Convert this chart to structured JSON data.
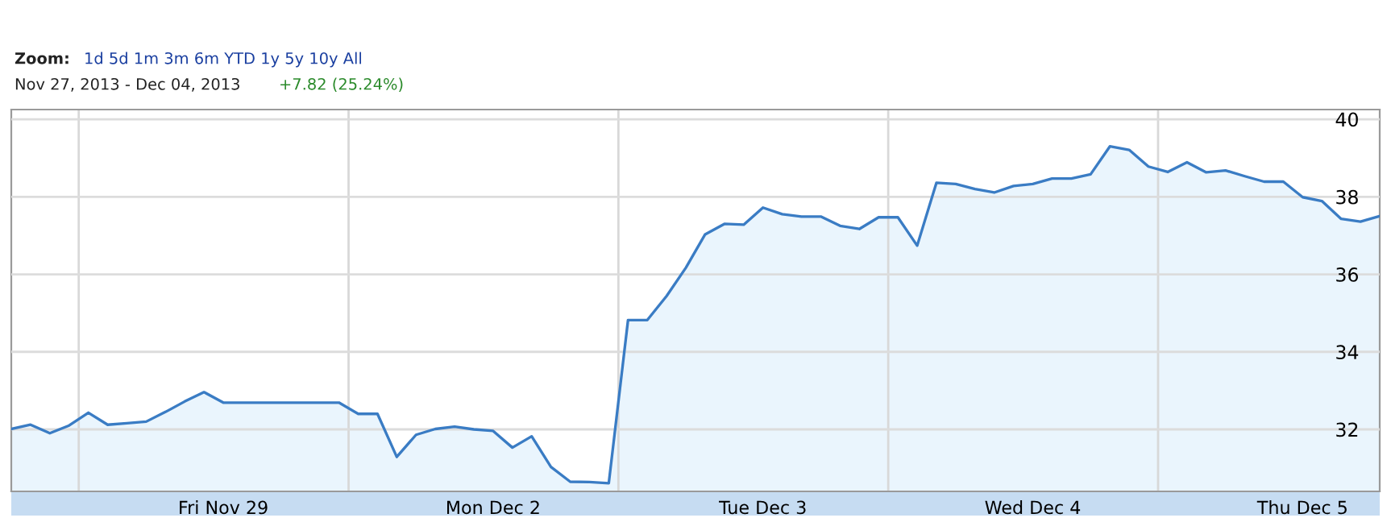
{
  "chart_data": {
    "type": "area",
    "subtitle": "Nov 27, 2013 - Dec 04, 2013",
    "annotations": [
      "Zoom:",
      "1d 5d 1m 3m 6m YTD 1y 5y 10y All",
      "+7.82 (25.24%)"
    ],
    "categories": [
      null,
      null,
      null,
      null,
      null,
      null,
      null,
      null,
      null,
      null,
      null,
      "Fri Nov 29",
      null,
      null,
      null,
      null,
      null,
      null,
      null,
      null,
      null,
      null,
      null,
      null,
      null,
      "Mon Dec 2",
      null,
      null,
      null,
      null,
      null,
      null,
      null,
      null,
      null,
      null,
      null,
      null,
      null,
      "Tue Dec 3",
      null,
      null,
      null,
      null,
      null,
      null,
      null,
      null,
      null,
      null,
      null,
      null,
      null,
      "Wed Dec 4",
      null,
      null,
      null,
      null,
      null,
      null,
      null,
      null,
      null,
      null,
      null,
      null,
      null,
      "Thu Dec 5",
      null,
      null,
      null,
      null
    ],
    "series": [
      {
        "color": "#3a7cc4",
        "values": [
          32.01,
          32.12,
          31.9,
          32.1,
          32.43,
          32.12,
          32.16,
          32.2,
          32.45,
          32.72,
          32.96,
          32.69,
          32.69,
          32.69,
          32.69,
          32.69,
          32.69,
          32.69,
          32.4,
          32.4,
          31.29,
          31.86,
          32.01,
          32.07,
          32.0,
          31.96,
          31.53,
          31.82,
          31.03,
          30.65,
          30.64,
          30.61,
          34.82,
          34.82,
          35.44,
          36.17,
          37.03,
          37.3,
          37.28,
          37.72,
          37.55,
          37.49,
          37.49,
          37.25,
          37.17,
          37.47,
          37.47,
          36.74,
          38.36,
          38.33,
          38.2,
          38.11,
          38.28,
          38.33,
          38.47,
          38.47,
          38.58,
          39.3,
          39.21,
          38.78,
          38.64,
          38.89,
          38.63,
          38.68,
          38.53,
          38.39,
          38.39,
          37.99,
          37.89,
          37.43,
          37.36,
          37.5
        ]
      }
    ],
    "ylim": [
      30.4,
      40.25
    ],
    "yticks": [
      32,
      34,
      36,
      38,
      40
    ],
    "grid": true
  }
}
